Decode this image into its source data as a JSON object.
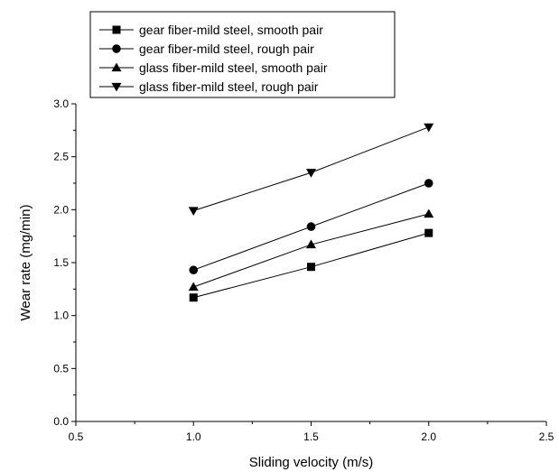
{
  "chart_data": {
    "type": "line",
    "title": "",
    "xlabel": "Sliding velocity (m/s)",
    "ylabel": "Wear rate (mg/min)",
    "xlim": [
      0.5,
      2.5
    ],
    "ylim": [
      0.0,
      3.0
    ],
    "x_ticks": [
      "0.5",
      "1.0",
      "1.5",
      "2.0",
      "2.5"
    ],
    "y_ticks": [
      "0.0",
      "0.5",
      "1.0",
      "1.5",
      "2.0",
      "2.5",
      "3.0"
    ],
    "grid": false,
    "legend_position": "top-left",
    "series": [
      {
        "name": "gear fiber-mild steel, smooth pair",
        "marker": "square",
        "x": [
          1.0,
          1.5,
          2.0
        ],
        "y": [
          1.17,
          1.46,
          1.78
        ]
      },
      {
        "name": "gear fiber-mild steel, rough pair",
        "marker": "circle",
        "x": [
          1.0,
          1.5,
          2.0
        ],
        "y": [
          1.43,
          1.84,
          2.25
        ]
      },
      {
        "name": "glass fiber-mild steel, smooth pair",
        "marker": "triangle-up",
        "x": [
          1.0,
          1.5,
          2.0
        ],
        "y": [
          1.27,
          1.67,
          1.96
        ]
      },
      {
        "name": "glass fiber-mild steel, rough pair",
        "marker": "triangle-down",
        "x": [
          1.0,
          1.5,
          2.0
        ],
        "y": [
          1.99,
          2.35,
          2.78
        ]
      }
    ],
    "colors": {
      "line": "#000000",
      "marker": "#000000"
    }
  }
}
